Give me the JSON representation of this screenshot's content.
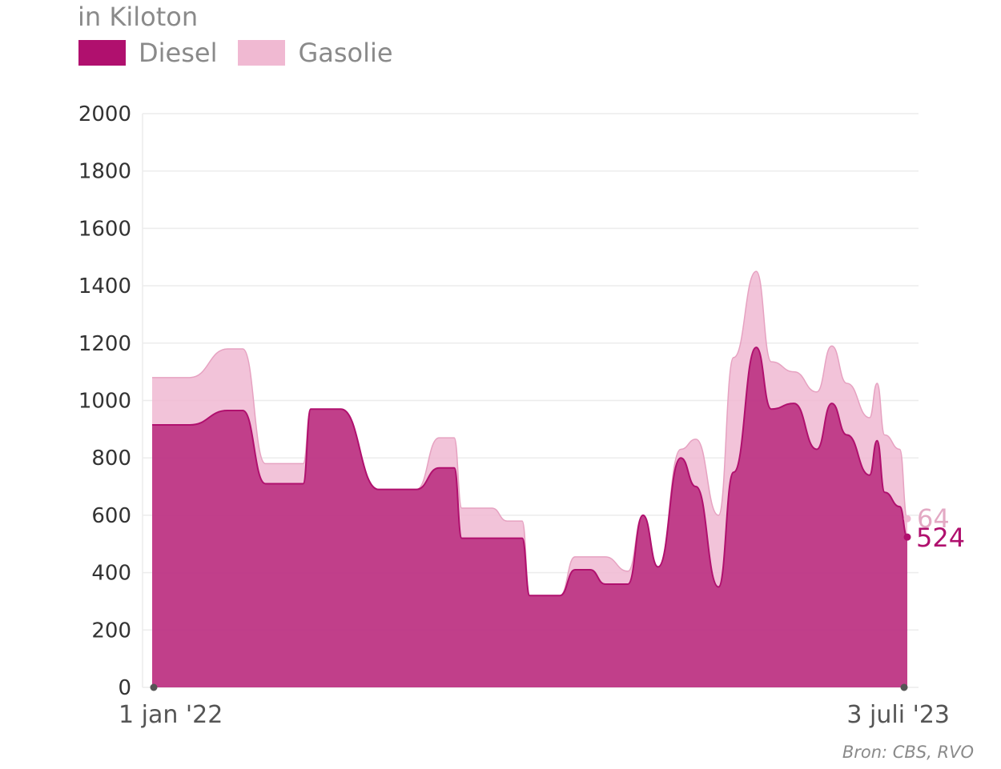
{
  "unit_label": "in Kiloton",
  "source": "Bron: CBS, RVO",
  "colors": {
    "diesel": "#b0106e",
    "gasolie": "#f0b9d2",
    "grid": "#ececec",
    "endpoint": "#555555"
  },
  "legend": [
    {
      "label": "Diesel",
      "color": "#b0106e"
    },
    {
      "label": "Gasolie",
      "color": "#f0b9d2"
    }
  ],
  "chart_data": {
    "type": "area",
    "stacked": true,
    "ylim": [
      0,
      2000
    ],
    "yticks": [
      "0",
      "200",
      "400",
      "600",
      "800",
      "1000",
      "1200",
      "1400",
      "1600",
      "1800",
      "2000"
    ],
    "xlabels": [
      "1 jan '22",
      "3 juli '23"
    ],
    "grid": true,
    "legend_position": "top-left",
    "x": [
      0,
      5,
      10,
      12,
      15,
      20,
      21,
      25,
      30,
      35,
      38,
      40,
      41,
      45,
      47,
      49,
      50,
      54,
      56,
      58,
      60,
      63,
      65,
      67,
      70,
      72,
      75,
      77,
      80,
      82,
      85,
      88,
      90,
      92,
      95,
      96,
      97,
      99,
      100
    ],
    "series": [
      {
        "name": "Diesel",
        "values": [
          915,
          915,
          965,
          965,
          710,
          710,
          970,
          970,
          690,
          690,
          765,
          765,
          520,
          520,
          520,
          520,
          320,
          320,
          410,
          410,
          360,
          360,
          600,
          420,
          800,
          700,
          350,
          750,
          1185,
          970,
          990,
          830,
          990,
          880,
          740,
          860,
          680,
          630,
          524
        ]
      },
      {
        "name": "Gasolie",
        "values": [
          165,
          165,
          215,
          215,
          70,
          70,
          0,
          0,
          0,
          0,
          105,
          105,
          105,
          105,
          60,
          60,
          0,
          0,
          45,
          45,
          95,
          45,
          0,
          0,
          30,
          165,
          250,
          400,
          265,
          165,
          110,
          200,
          200,
          180,
          200,
          200,
          200,
          200,
          64
        ]
      }
    ],
    "end_labels": {
      "Gasolie": "64",
      "Diesel": "524"
    }
  }
}
